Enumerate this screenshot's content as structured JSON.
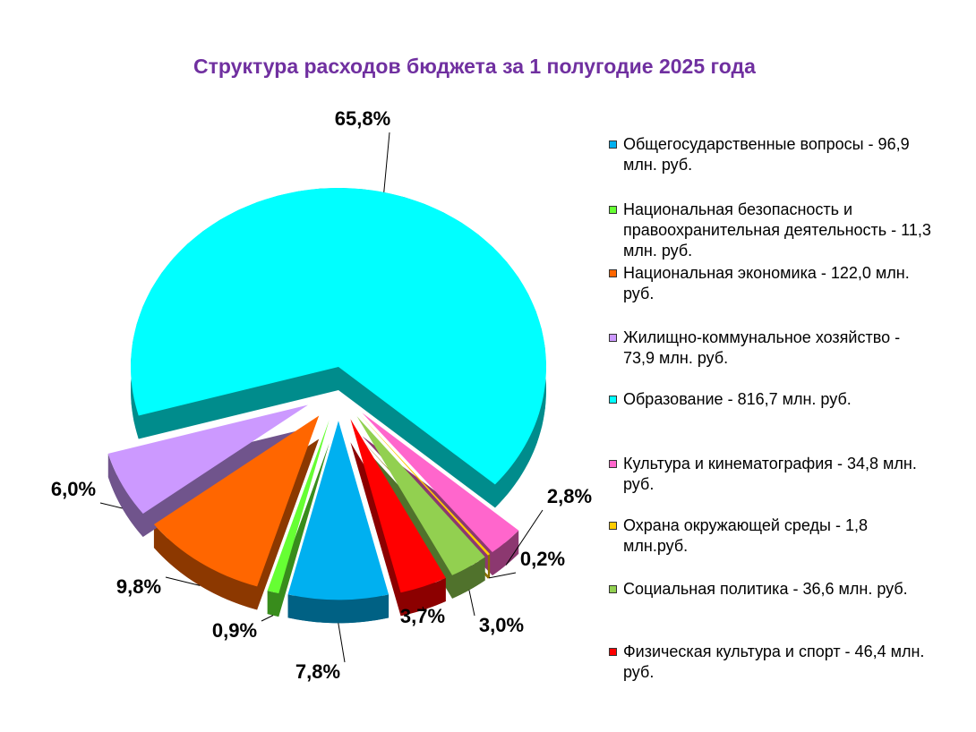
{
  "chart_data": {
    "type": "pie",
    "title": "Структура расходов бюджета за 1 полугодие 2025 года",
    "categories": [
      "Общегосударственные вопросы - 96,9 млн. руб.",
      "Национальная безопасность и правоохранительная деятельность -  11,3 млн. руб.",
      "Национальная экономика -  122,0 млн. руб.",
      "Жилищно-коммунальное хозяйство -  73,9 млн. руб.",
      "Образование -  816,7 млн. руб.",
      "Культура и кинематография -  34,8 млн. руб.",
      "Охрана окружающей среды - 1,8 млн.руб.",
      "Социальная политика -  36,6 млн. руб.",
      "Физическая культура и спорт - 46,4 млн. руб."
    ],
    "values": [
      7.8,
      0.9,
      9.8,
      6.0,
      65.8,
      2.8,
      0.2,
      3.0,
      3.7
    ],
    "value_labels": [
      "7,8%",
      "0,9%",
      "9,8%",
      "6,0%",
      "65,8%",
      "2,8%",
      "0,2%",
      "3,0%",
      "3,7%"
    ],
    "colors": [
      "#00b0f0",
      "#66ff33",
      "#ff6600",
      "#cc99ff",
      "#00ffff",
      "#ff66cc",
      "#ffcc00",
      "#92d050",
      "#ff0000"
    ],
    "legend": "right"
  }
}
